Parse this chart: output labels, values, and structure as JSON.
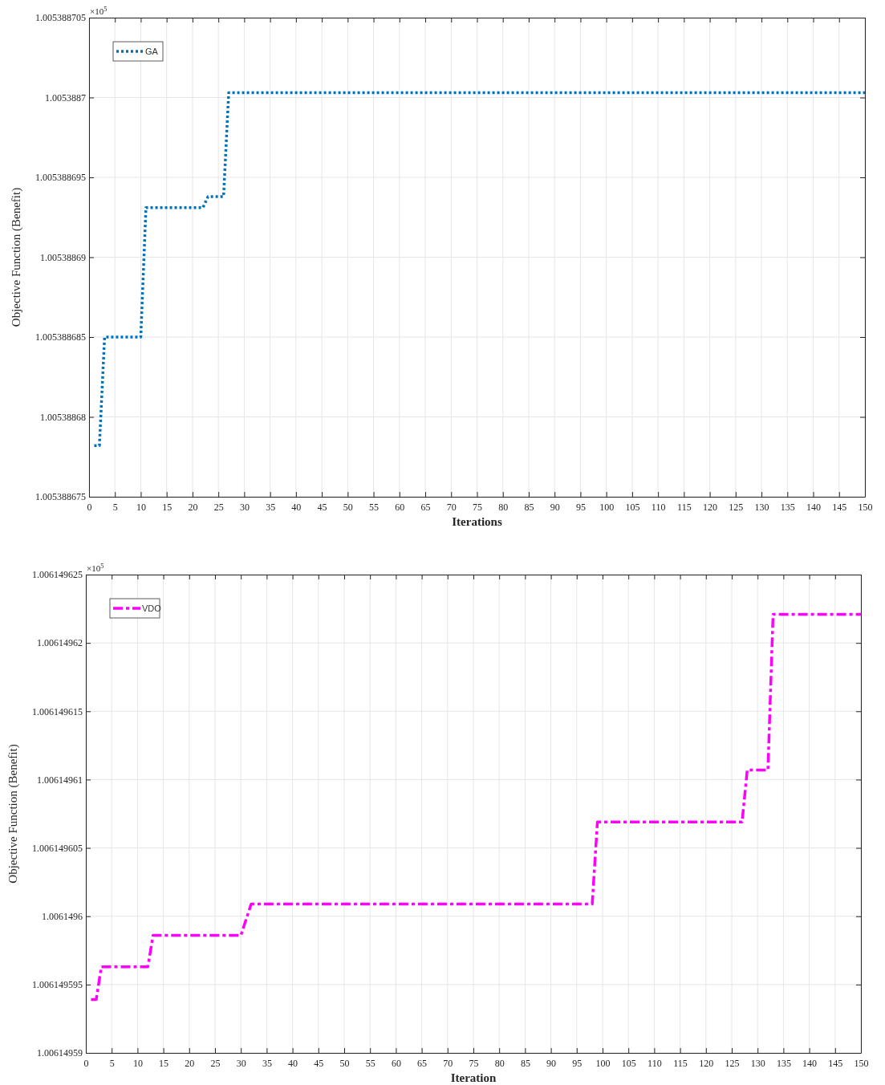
{
  "chart_data": [
    {
      "type": "line",
      "xlabel": "Iterations",
      "ylabel": "Objective Function (Benefit)",
      "annotations": [
        "×10$^{5}$"
      ],
      "xlim": [
        0,
        150
      ],
      "xticks": [
        0,
        5,
        10,
        15,
        20,
        25,
        30,
        35,
        40,
        45,
        50,
        55,
        60,
        65,
        70,
        75,
        80,
        85,
        90,
        95,
        100,
        105,
        110,
        115,
        120,
        125,
        130,
        135,
        140,
        145,
        150
      ],
      "ylim": [
        1.005388675,
        1.005388705
      ],
      "yticks": [
        1.005388675,
        1.00538868,
        1.005388685,
        1.00538869,
        1.005388695,
        1.0053887,
        1.005388705
      ],
      "grid": true,
      "legend": "top left",
      "line_style": "dotted",
      "series": [
        {
          "name": "GA",
          "color": "#0072bd",
          "x": [
            1,
            2,
            3,
            10,
            11,
            22,
            23,
            26,
            27,
            150
          ],
          "values": [
            1.0053886782,
            1.0053886782,
            1.005388685,
            1.005388685,
            1.0053886931,
            1.0053886931,
            1.0053886938,
            1.0053886938,
            1.0053887003,
            1.0053887003
          ]
        }
      ]
    },
    {
      "type": "line",
      "xlabel": "Iteration",
      "ylabel": "Objective Function (Benefit)",
      "annotations": [
        "×10$^{5}$"
      ],
      "xlim": [
        0,
        150
      ],
      "xticks": [
        0,
        5,
        10,
        15,
        20,
        25,
        30,
        35,
        40,
        45,
        50,
        55,
        60,
        65,
        70,
        75,
        80,
        85,
        90,
        95,
        100,
        105,
        110,
        115,
        120,
        125,
        130,
        135,
        140,
        145,
        150
      ],
      "ylim": [
        1.00614959,
        1.006149625
      ],
      "yticks": [
        1.00614959,
        1.006149595,
        1.0061496,
        1.006149605,
        1.00614961,
        1.006149615,
        1.00614962,
        1.006149625
      ],
      "grid": true,
      "legend": "top left",
      "line_style": "dashed",
      "series": [
        {
          "name": "VDO",
          "color": "#ff00ff",
          "x": [
            1,
            2,
            3,
            12,
            13,
            30,
            32,
            98,
            99,
            127,
            128,
            132,
            133,
            150
          ],
          "values": [
            1.0061495939,
            1.0061495939,
            1.0061495963,
            1.0061495963,
            1.0061495986,
            1.0061495986,
            1.0061496009,
            1.0061496009,
            1.0061496069,
            1.0061496069,
            1.0061496107,
            1.0061496107,
            1.0061496221,
            1.0061496221
          ]
        }
      ]
    }
  ]
}
